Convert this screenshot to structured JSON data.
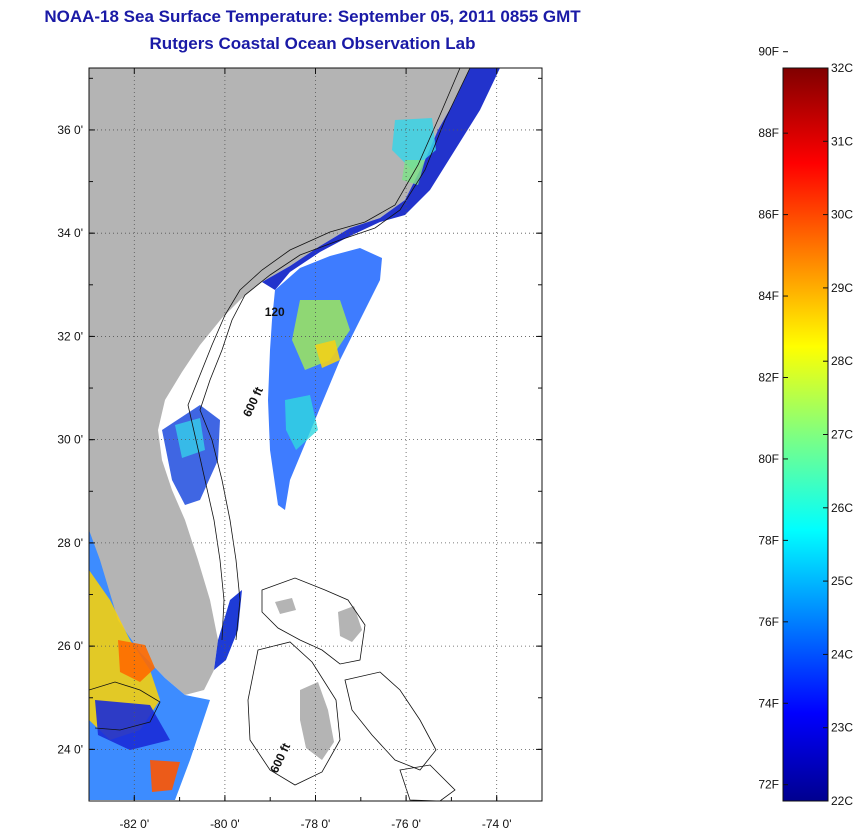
{
  "header": {
    "title": "NOAA-18 Sea Surface Temperature:  September 05, 2011 0855 GMT",
    "subtitle": "Rutgers Coastal Ocean Observation Lab"
  },
  "map": {
    "lat_range": [
      23,
      37.2
    ],
    "lon_range": [
      -83,
      -73
    ],
    "lat_ticks": [
      {
        "value": 24,
        "label": "24 0'"
      },
      {
        "value": 26,
        "label": "26 0'"
      },
      {
        "value": 28,
        "label": "28 0'"
      },
      {
        "value": 30,
        "label": "30 0'"
      },
      {
        "value": 32,
        "label": "32 0'"
      },
      {
        "value": 34,
        "label": "34 0'"
      },
      {
        "value": 36,
        "label": "36 0'"
      }
    ],
    "lon_ticks": [
      {
        "value": -82,
        "label": "-82 0'"
      },
      {
        "value": -80,
        "label": "-80 0'"
      },
      {
        "value": -78,
        "label": "-78 0'"
      },
      {
        "value": -76,
        "label": "-76 0'"
      },
      {
        "value": -74,
        "label": "-74 0'"
      }
    ],
    "contour_labels": [
      {
        "text": "120",
        "lon": -78.9,
        "lat": 32.4
      },
      {
        "text": "600 ft",
        "lon": -79.3,
        "lat": 30.7
      },
      {
        "text": "600 ft",
        "lon": -78.7,
        "lat": 23.8
      }
    ],
    "land_color": "#b4b4b4",
    "grid": true
  },
  "colorbar": {
    "min_c": 22,
    "max_c": 32,
    "fahrenheit_labels": [
      "90F",
      "88F",
      "86F",
      "84F",
      "82F",
      "80F",
      "78F",
      "76F",
      "74F",
      "72F"
    ],
    "celsius_labels": [
      "32C",
      "31C",
      "30C",
      "29C",
      "28C",
      "27C",
      "26C",
      "25C",
      "24C",
      "23C",
      "22C"
    ],
    "colormap": "jet"
  }
}
